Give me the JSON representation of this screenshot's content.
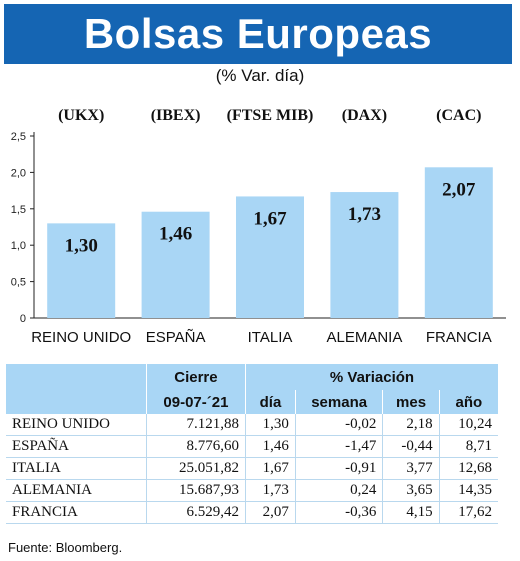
{
  "title": "Bolsas Europeas",
  "subtitle": "(% Var. día)",
  "chart_data": {
    "type": "bar",
    "categories": [
      "REINO UNIDO",
      "ESPAÑA",
      "ITALIA",
      "ALEMANIA",
      "FRANCIA"
    ],
    "indices": [
      "(UKX)",
      "(IBEX)",
      "(FTSE MIB)",
      "(DAX)",
      "(CAC)"
    ],
    "values": [
      1.3,
      1.46,
      1.67,
      1.73,
      2.07
    ],
    "value_labels": [
      "1,30",
      "1,46",
      "1,67",
      "1,73",
      "2,07"
    ],
    "ylim": [
      0,
      2.5
    ],
    "yticks": [
      0,
      0.5,
      1.0,
      1.5,
      2.0,
      2.5
    ],
    "ytick_labels": [
      "0",
      "0,5",
      "1,0",
      "1,5",
      "2,0",
      "2,5"
    ],
    "bar_color": "#a9d6f5",
    "grid": false
  },
  "table": {
    "header_cierre": "Cierre",
    "header_variacion": "% Variación",
    "date": "09-07-´21",
    "cols": [
      "día",
      "semana",
      "mes",
      "año"
    ],
    "rows": [
      {
        "name": "REINO UNIDO",
        "cierre": "7.121,88",
        "dia": "1,30",
        "semana": "-0,02",
        "mes": "2,18",
        "ano": "10,24"
      },
      {
        "name": "ESPAÑA",
        "cierre": "8.776,60",
        "dia": "1,46",
        "semana": "-1,47",
        "mes": "-0,44",
        "ano": "8,71"
      },
      {
        "name": "ITALIA",
        "cierre": "25.051,82",
        "dia": "1,67",
        "semana": "-0,91",
        "mes": "3,77",
        "ano": "12,68"
      },
      {
        "name": "ALEMANIA",
        "cierre": "15.687,93",
        "dia": "1,73",
        "semana": "0,24",
        "mes": "3,65",
        "ano": "14,35"
      },
      {
        "name": "FRANCIA",
        "cierre": "6.529,42",
        "dia": "2,07",
        "semana": "-0,36",
        "mes": "4,15",
        "ano": "17,62"
      }
    ]
  },
  "source": "Fuente: Bloomberg.",
  "colors": {
    "banner": "#1565b3",
    "header_bg": "#a9d6f5",
    "bars": "#a9d6f5"
  }
}
